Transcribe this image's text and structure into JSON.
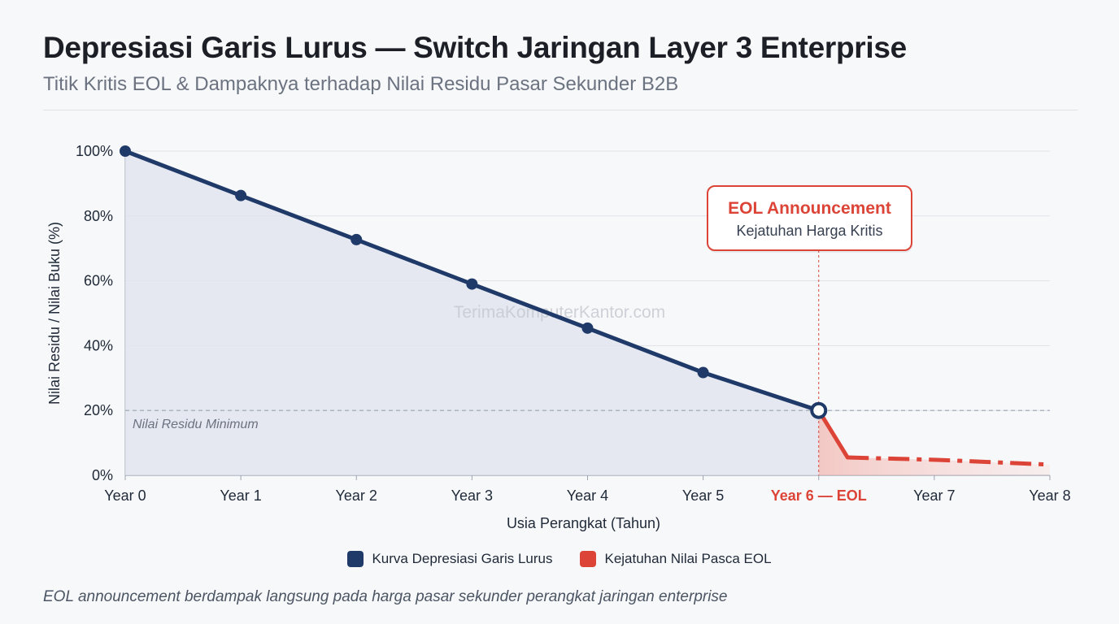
{
  "header": {
    "title": "Depresiasi Garis Lurus — Switch Jaringan Layer 3 Enterprise",
    "subtitle": "Titik Kritis EOL & Dampaknya terhadap Nilai Residu Pasar Sekunder B2B"
  },
  "chart_data": {
    "type": "line",
    "xlabel": "Usia Perangkat (Tahun)",
    "ylabel": "Nilai Residu / Nilai Buku (%)",
    "x": [
      0,
      1,
      2,
      3,
      4,
      5,
      6,
      6.25,
      7,
      8
    ],
    "categories": [
      "Year 0",
      "Year 1",
      "Year 2",
      "Year 3",
      "Year 4",
      "Year 5",
      "Year 6 — EOL",
      "Year 7",
      "Year 8"
    ],
    "ylim": [
      0,
      100
    ],
    "xlim": [
      0,
      8
    ],
    "yticks": [
      "0%",
      "20%",
      "40%",
      "60%",
      "80%",
      "100%"
    ],
    "grid": true,
    "series": [
      {
        "name": "Kurva Depresiasi Garis Lurus",
        "color": "#1f3a68",
        "x": [
          0,
          1,
          2,
          3,
          4,
          5,
          6
        ],
        "values": [
          100,
          86.3,
          72.7,
          59.0,
          45.4,
          31.7,
          20
        ]
      },
      {
        "name": "Kejatuhan Nilai Pasca EOL",
        "color": "#dc4437",
        "x": [
          6,
          6.25,
          7,
          8
        ],
        "values": [
          20,
          5.5,
          4.8,
          3.3
        ]
      }
    ],
    "reference_line": {
      "value": 20,
      "label": "Nilai Residu Minimum"
    },
    "eol_marker": {
      "x": 6
    },
    "annotation": {
      "title": "EOL Announcement",
      "text": "Kejatuhan Harga Kritis"
    },
    "watermark": "TerimaKomputerKantor.com"
  },
  "legend": [
    {
      "label": "Kurva Depresiasi Garis Lurus",
      "color": "#1f3a68"
    },
    {
      "label": "Kejatuhan Nilai Pasca EOL",
      "color": "#dc4437"
    }
  ],
  "footnote": "EOL announcement berdampak langsung pada harga pasar sekunder perangkat jaringan enterprise"
}
